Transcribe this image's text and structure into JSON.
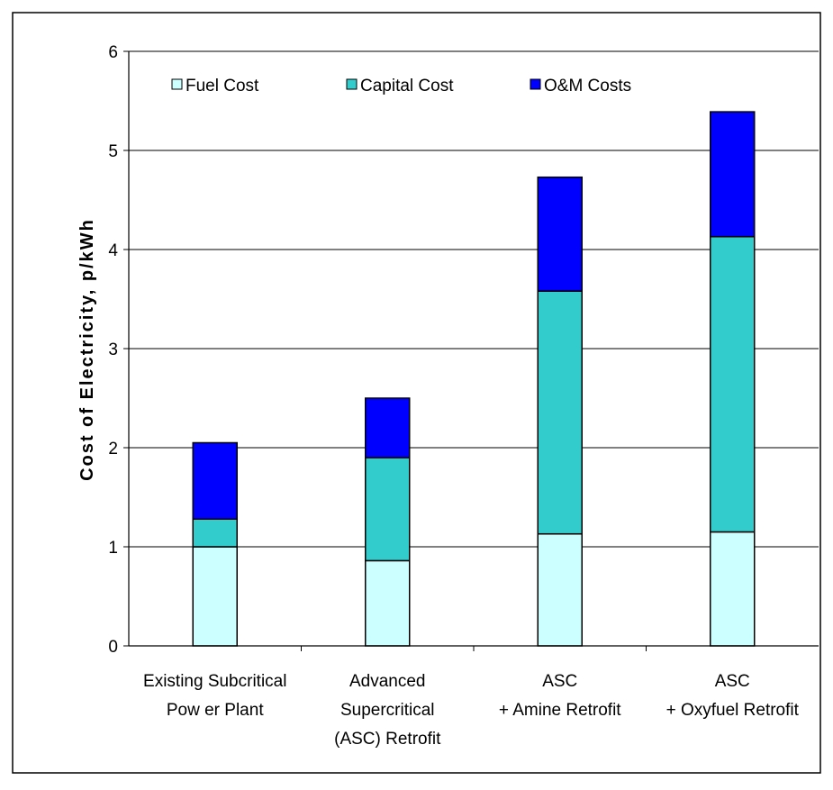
{
  "chart_data": {
    "type": "bar",
    "stacked": true,
    "title": "",
    "xlabel": "",
    "ylabel": "Cost of Electricity, p/kWh",
    "ylim": [
      0,
      6
    ],
    "yticks": [
      "0",
      "1",
      "2",
      "3",
      "4",
      "5",
      "6"
    ],
    "grid": true,
    "legend_position": "top",
    "categories": [
      [
        "Existing Subcritical",
        "Pow er Plant"
      ],
      [
        "Advanced",
        "Supercritical",
        "(ASC) Retrofit"
      ],
      [
        "ASC",
        "+ Amine Retrofit"
      ],
      [
        "ASC",
        "+ Oxyfuel Retrofit"
      ]
    ],
    "series": [
      {
        "name": "Fuel Cost",
        "color": "#ccffff",
        "values": [
          1.0,
          0.86,
          1.13,
          1.15
        ]
      },
      {
        "name": "Capital Cost",
        "color": "#33cccc",
        "values": [
          0.28,
          1.04,
          2.45,
          2.98
        ]
      },
      {
        "name": "O&M Costs",
        "color": "#0000ff",
        "values": [
          0.77,
          0.6,
          1.15,
          1.26
        ]
      }
    ]
  }
}
